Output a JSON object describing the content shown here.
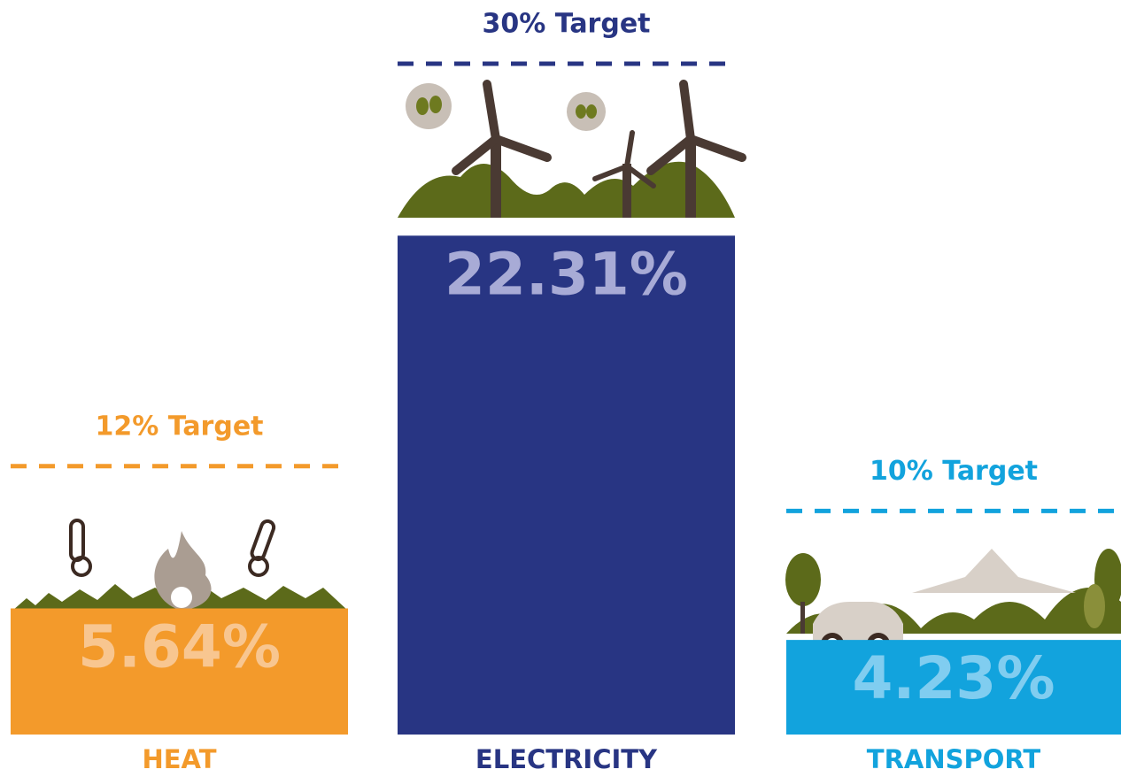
{
  "chart_data": {
    "type": "bar",
    "categories": [
      "HEAT",
      "ELECTRICITY",
      "TRANSPORT"
    ],
    "values": [
      5.64,
      22.31,
      4.23
    ],
    "value_labels": [
      "5.64%",
      "22.31%",
      "4.23%"
    ],
    "colors": [
      "#f39a2b",
      "#283583",
      "#12a3dd"
    ],
    "value_label_colors": [
      "#f8c690",
      "#a8abd6",
      "#80cdf0"
    ],
    "targets": [
      12,
      30,
      10
    ],
    "target_labels": [
      "12% Target",
      "30% Target",
      "10% Target"
    ],
    "ylim": [
      0,
      30
    ]
  }
}
